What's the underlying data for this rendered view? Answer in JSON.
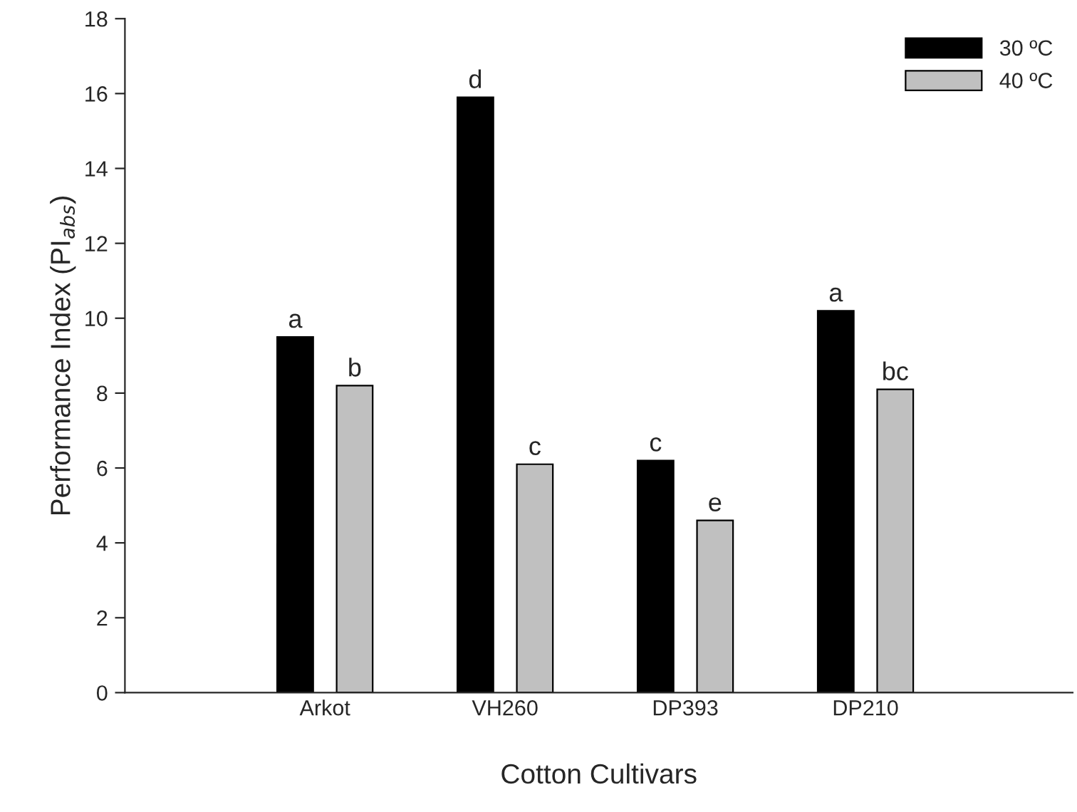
{
  "chart_data": {
    "type": "bar",
    "xlabel": "Cotton Cultivars",
    "ylabel": "Performance Index (PI$_{abs}$)",
    "categories": [
      "Arkot",
      "VH260",
      "DP393",
      "DP210"
    ],
    "series": [
      {
        "name": "30 ºC",
        "color": "#000000",
        "values": [
          9.5,
          15.9,
          6.2,
          10.2
        ],
        "value_labels": [
          "a",
          "d",
          "c",
          "a"
        ]
      },
      {
        "name": "40 ºC",
        "color": "#c0c0c0",
        "values": [
          8.2,
          6.1,
          4.6,
          8.1
        ],
        "value_labels": [
          "b",
          "c",
          "e",
          "bc"
        ]
      }
    ],
    "ylim": [
      0,
      18
    ],
    "yticks": [
      0,
      2,
      4,
      6,
      8,
      10,
      12,
      14,
      16,
      18
    ],
    "grid": false,
    "legend": "top right"
  }
}
